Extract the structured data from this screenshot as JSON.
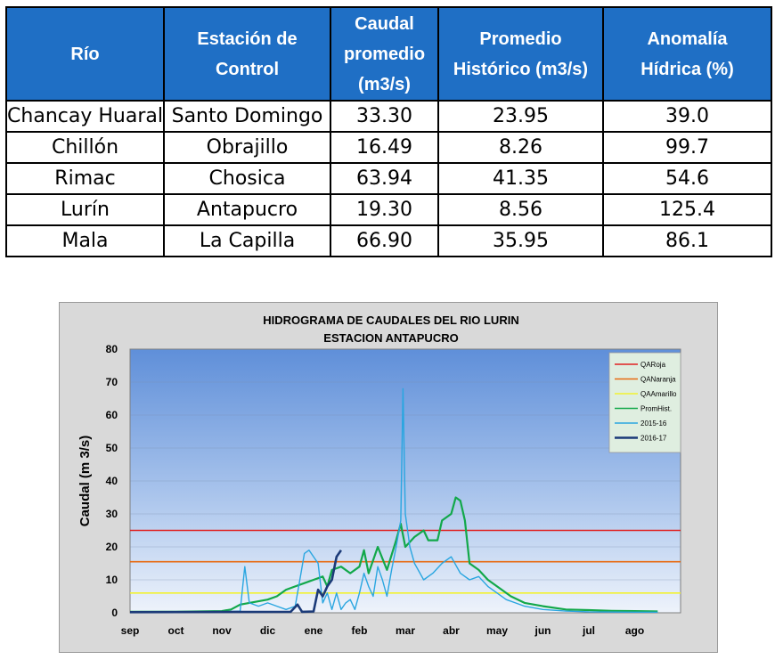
{
  "table": {
    "headers": [
      [
        "Río"
      ],
      [
        "Estación de",
        "Control"
      ],
      [
        "Caudal",
        "promedio",
        "(m3/s)"
      ],
      [
        "Promedio",
        "Histórico (m3/s)"
      ],
      [
        "Anomalía",
        "Hídrica (%)"
      ]
    ],
    "rows": [
      [
        "Chancay Huaral",
        "Santo Domingo",
        "33.30",
        "23.95",
        "39.0"
      ],
      [
        "Chillón",
        "Obrajillo",
        "16.49",
        "8.26",
        "99.7"
      ],
      [
        "Rimac",
        "Chosica",
        "63.94",
        "41.35",
        "54.6"
      ],
      [
        "Lurín",
        "Antapucro",
        "19.30",
        "8.56",
        "125.4"
      ],
      [
        "Mala",
        "La Capilla",
        "66.90",
        "35.95",
        "86.1"
      ]
    ]
  },
  "chart_data": {
    "type": "line",
    "title": [
      "HIDROGRAMA DE CAUDALES DEL RIO LURIN",
      "ESTACION ANTAPUCRO"
    ],
    "ylabel": "Caudal (m 3/s)",
    "xlabel": "",
    "ylim": [
      0,
      80
    ],
    "yticks": [
      0,
      10,
      20,
      30,
      40,
      50,
      60,
      70,
      80
    ],
    "months": [
      "sep",
      "oct",
      "nov",
      "dic",
      "ene",
      "feb",
      "mar",
      "abr",
      "may",
      "jun",
      "jul",
      "ago"
    ],
    "grid": true,
    "legend_position": "top-right",
    "x_units": "months since sep 1",
    "colors": {
      "QARoja": "#e02020",
      "QANaranja": "#e86a10",
      "QAAmarillo": "#f2f230",
      "PromHist.": "#12a84a",
      "2015-16": "#2aa6e0",
      "2016-17": "#1b3a78"
    },
    "thresholds": [
      {
        "name": "QARoja",
        "value": 25
      },
      {
        "name": "QANaranja",
        "value": 15.5
      },
      {
        "name": "QAAmarillo",
        "value": 6
      }
    ],
    "series": [
      {
        "name": "PromHist.",
        "points": [
          [
            0,
            0.3
          ],
          [
            0.5,
            0.3
          ],
          [
            1,
            0.3
          ],
          [
            1.5,
            0.4
          ],
          [
            2,
            0.5
          ],
          [
            2.2,
            1
          ],
          [
            2.4,
            2.5
          ],
          [
            2.6,
            3
          ],
          [
            2.8,
            3.5
          ],
          [
            3,
            4
          ],
          [
            3.2,
            5
          ],
          [
            3.4,
            7
          ],
          [
            3.6,
            8
          ],
          [
            3.8,
            9
          ],
          [
            4,
            10
          ],
          [
            4.2,
            11
          ],
          [
            4.3,
            8
          ],
          [
            4.4,
            13
          ],
          [
            4.6,
            14
          ],
          [
            4.8,
            12
          ],
          [
            5,
            14
          ],
          [
            5.1,
            19
          ],
          [
            5.2,
            12
          ],
          [
            5.4,
            20
          ],
          [
            5.6,
            13
          ],
          [
            5.8,
            22
          ],
          [
            5.9,
            27
          ],
          [
            6,
            20
          ],
          [
            6.2,
            23
          ],
          [
            6.4,
            25
          ],
          [
            6.5,
            22
          ],
          [
            6.7,
            22
          ],
          [
            6.8,
            28
          ],
          [
            7,
            30
          ],
          [
            7.1,
            35
          ],
          [
            7.2,
            34
          ],
          [
            7.3,
            28
          ],
          [
            7.4,
            15
          ],
          [
            7.6,
            13
          ],
          [
            7.8,
            10
          ],
          [
            8,
            8
          ],
          [
            8.3,
            5
          ],
          [
            8.6,
            3
          ],
          [
            9,
            2
          ],
          [
            9.5,
            1
          ],
          [
            10,
            0.8
          ],
          [
            10.5,
            0.6
          ],
          [
            11,
            0.5
          ],
          [
            11.5,
            0.4
          ]
        ]
      },
      {
        "name": "2015-16",
        "points": [
          [
            0,
            0.1
          ],
          [
            1,
            0.2
          ],
          [
            2,
            0.3
          ],
          [
            2.4,
            0.5
          ],
          [
            2.5,
            14
          ],
          [
            2.6,
            3
          ],
          [
            2.8,
            2
          ],
          [
            3,
            3
          ],
          [
            3.2,
            2
          ],
          [
            3.4,
            1
          ],
          [
            3.6,
            2
          ],
          [
            3.7,
            10
          ],
          [
            3.8,
            18
          ],
          [
            3.9,
            19
          ],
          [
            4,
            17
          ],
          [
            4.1,
            15
          ],
          [
            4.2,
            3
          ],
          [
            4.3,
            6
          ],
          [
            4.4,
            1
          ],
          [
            4.5,
            6
          ],
          [
            4.6,
            1
          ],
          [
            4.7,
            3
          ],
          [
            4.8,
            4
          ],
          [
            4.9,
            1
          ],
          [
            5,
            6
          ],
          [
            5.1,
            12
          ],
          [
            5.2,
            8
          ],
          [
            5.3,
            5
          ],
          [
            5.4,
            14
          ],
          [
            5.5,
            10
          ],
          [
            5.6,
            5
          ],
          [
            5.7,
            13
          ],
          [
            5.8,
            20
          ],
          [
            5.9,
            28
          ],
          [
            5.95,
            68
          ],
          [
            6.0,
            30
          ],
          [
            6.1,
            20
          ],
          [
            6.2,
            15
          ],
          [
            6.4,
            10
          ],
          [
            6.6,
            12
          ],
          [
            6.8,
            15
          ],
          [
            7,
            17
          ],
          [
            7.2,
            12
          ],
          [
            7.4,
            10
          ],
          [
            7.6,
            11
          ],
          [
            7.8,
            8
          ],
          [
            8,
            6
          ],
          [
            8.2,
            4
          ],
          [
            8.4,
            3
          ],
          [
            8.6,
            2
          ],
          [
            9,
            1
          ],
          [
            9.5,
            0.5
          ],
          [
            10,
            0.3
          ],
          [
            11,
            0.2
          ],
          [
            11.5,
            0.2
          ]
        ]
      },
      {
        "name": "2016-17",
        "points": [
          [
            0,
            0.2
          ],
          [
            3.5,
            0.3
          ],
          [
            3.65,
            2.5
          ],
          [
            3.75,
            0.3
          ],
          [
            4,
            0.4
          ],
          [
            4.1,
            7
          ],
          [
            4.2,
            5
          ],
          [
            4.3,
            8
          ],
          [
            4.4,
            10
          ],
          [
            4.5,
            17
          ],
          [
            4.6,
            19
          ]
        ]
      }
    ]
  }
}
